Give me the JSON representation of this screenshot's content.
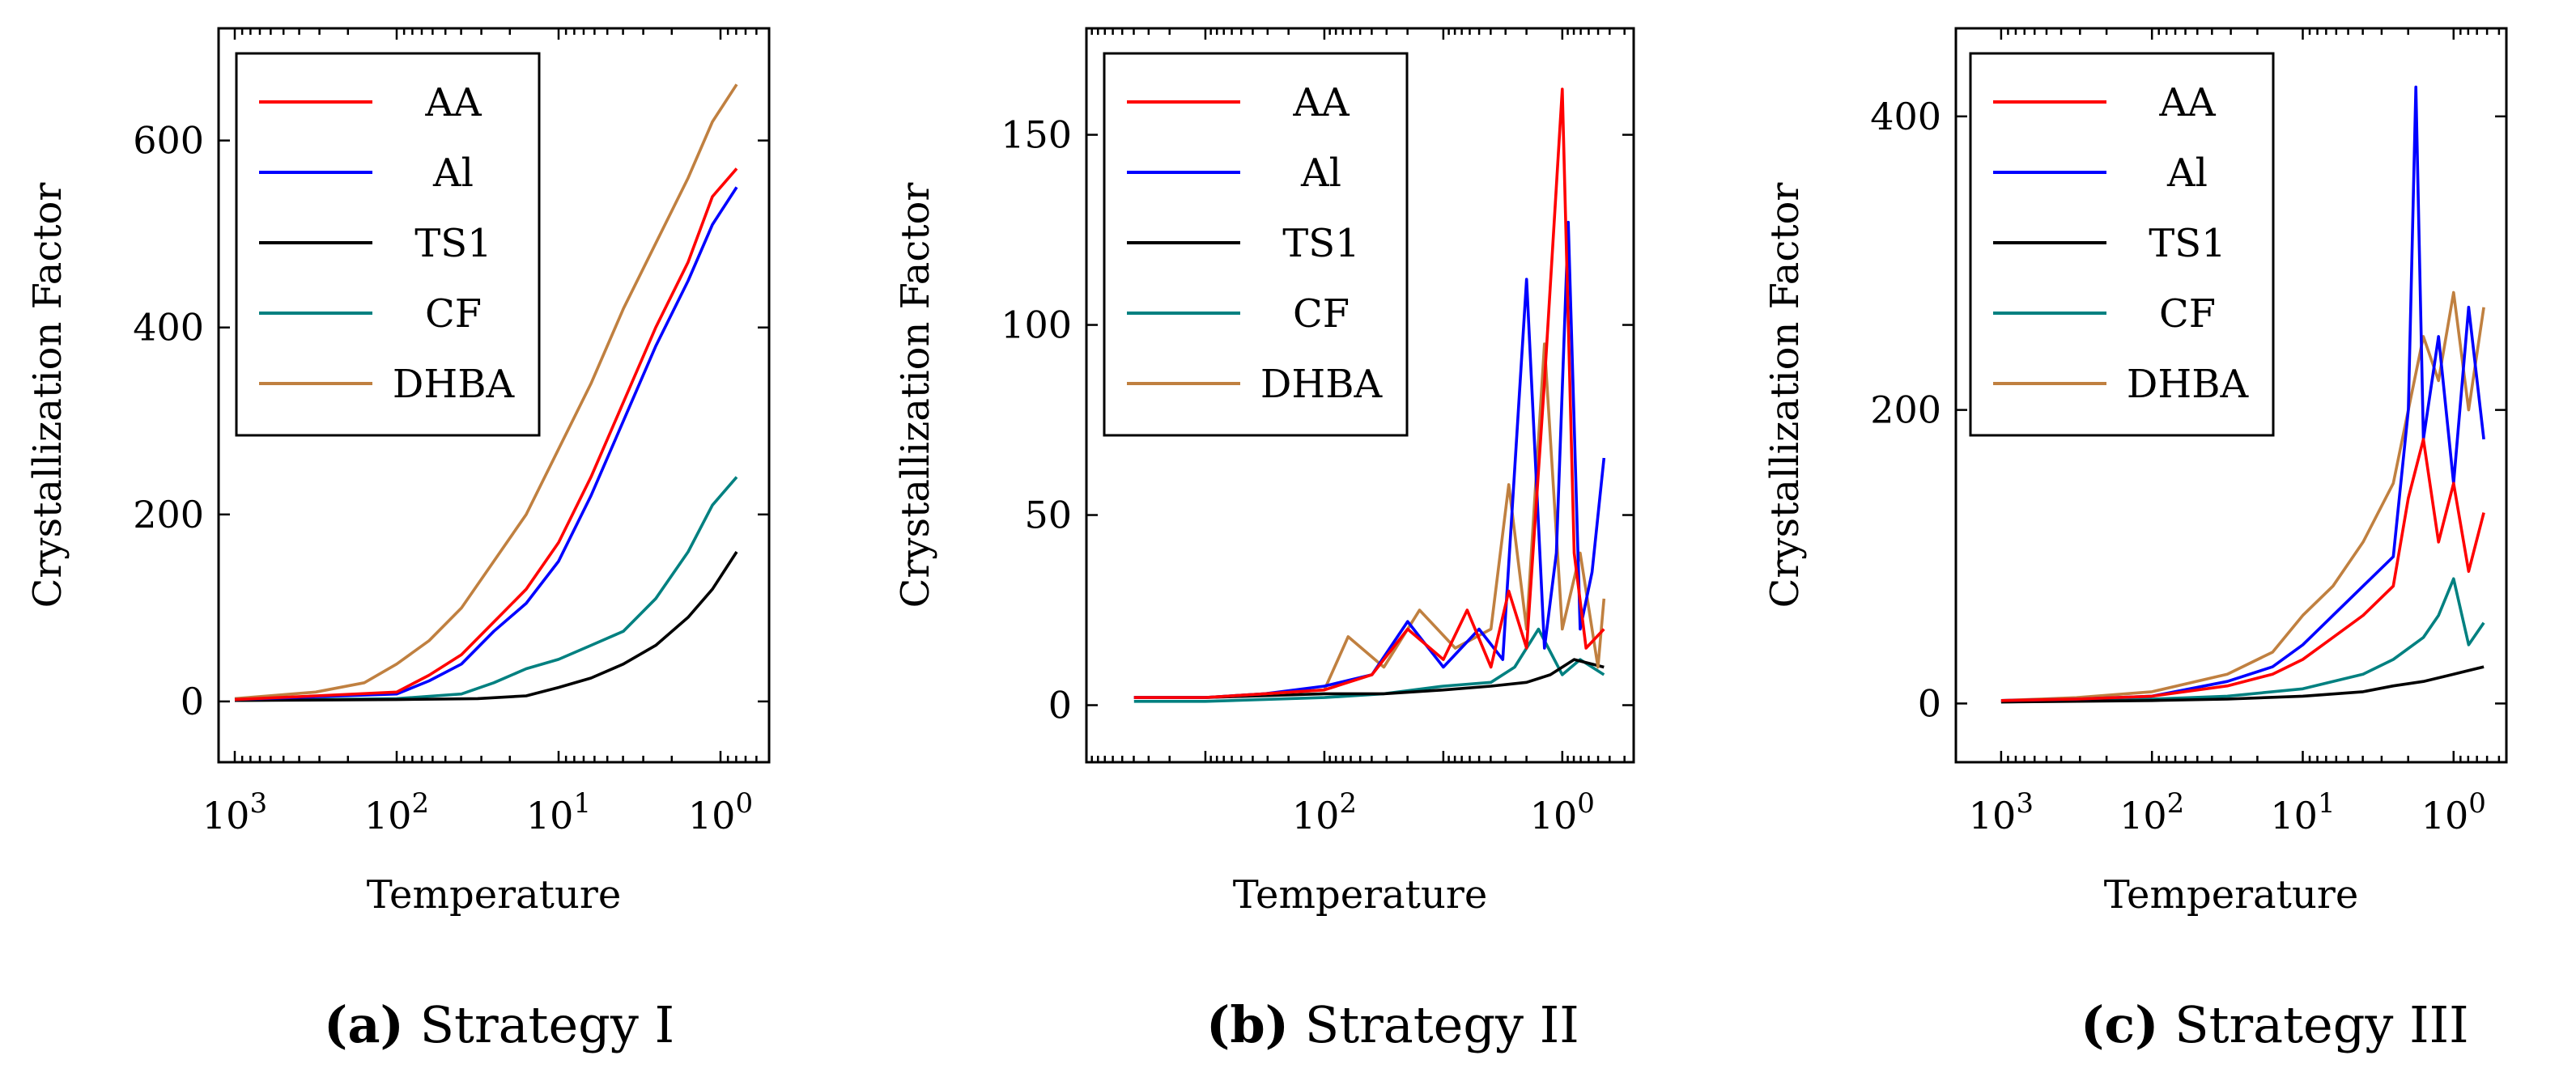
{
  "colors": {
    "AA": "#ff0000",
    "Al": "#0000ff",
    "TS1": "#000000",
    "CF": "#008080",
    "DHBA": "#c08040"
  },
  "chart_data": [
    {
      "type": "line",
      "caption_letter": "(a)",
      "caption_text": "Strategy I",
      "xlabel": "Temperature",
      "ylabel": "Crystallization Factor",
      "xscale": "log-reversed",
      "xlim_exp": [
        3.1,
        -0.3
      ],
      "ylim": [
        -65,
        720
      ],
      "yticks": [
        0,
        200,
        400,
        600
      ],
      "xticks": [
        {
          "exp": 3,
          "label": "10",
          "sup": "3"
        },
        {
          "exp": 2,
          "label": "10",
          "sup": "2"
        },
        {
          "exp": 1,
          "label": "10",
          "sup": "1"
        },
        {
          "exp": 0,
          "label": "10",
          "sup": "0"
        }
      ],
      "legend": [
        "AA",
        "Al",
        "TS1",
        "CF",
        "DHBA"
      ],
      "series": [
        {
          "name": "AA",
          "exp": [
            3.0,
            2.5,
            2.0,
            1.8,
            1.6,
            1.4,
            1.2,
            1.0,
            0.8,
            0.6,
            0.4,
            0.2,
            0.05,
            -0.1
          ],
          "values": [
            2,
            6,
            10,
            28,
            50,
            85,
            120,
            170,
            240,
            320,
            400,
            470,
            540,
            570
          ]
        },
        {
          "name": "Al",
          "exp": [
            3.0,
            2.5,
            2.0,
            1.8,
            1.6,
            1.4,
            1.2,
            1.0,
            0.8,
            0.6,
            0.4,
            0.2,
            0.05,
            -0.1
          ],
          "values": [
            2,
            5,
            8,
            22,
            40,
            75,
            105,
            150,
            220,
            300,
            380,
            450,
            510,
            550
          ]
        },
        {
          "name": "TS1",
          "exp": [
            3.0,
            2.0,
            1.5,
            1.2,
            1.0,
            0.8,
            0.6,
            0.4,
            0.2,
            0.05,
            -0.1
          ],
          "values": [
            1,
            2,
            3,
            6,
            15,
            25,
            40,
            60,
            90,
            120,
            160
          ]
        },
        {
          "name": "CF",
          "exp": [
            3.0,
            2.0,
            1.6,
            1.4,
            1.2,
            1.0,
            0.8,
            0.6,
            0.4,
            0.2,
            0.05,
            -0.1
          ],
          "values": [
            1,
            3,
            8,
            20,
            35,
            45,
            60,
            75,
            110,
            160,
            210,
            240
          ]
        },
        {
          "name": "DHBA",
          "exp": [
            3.0,
            2.5,
            2.2,
            2.0,
            1.8,
            1.6,
            1.4,
            1.2,
            1.0,
            0.8,
            0.6,
            0.4,
            0.2,
            0.05,
            -0.1
          ],
          "values": [
            3,
            10,
            20,
            40,
            65,
            100,
            150,
            200,
            270,
            340,
            420,
            490,
            560,
            620,
            660
          ]
        }
      ]
    },
    {
      "type": "line",
      "caption_letter": "(b)",
      "caption_text": "Strategy II",
      "xlabel": "Temperature",
      "ylabel": "Crystallization Factor",
      "xscale": "log-reversed",
      "xlim_exp": [
        4.0,
        -0.6
      ],
      "ylim": [
        -15,
        178
      ],
      "yticks": [
        0,
        50,
        100,
        150
      ],
      "xticks": [
        {
          "exp": 2,
          "label": "10",
          "sup": "2"
        },
        {
          "exp": 0,
          "label": "10",
          "sup": "0"
        }
      ],
      "legend": [
        "AA",
        "Al",
        "TS1",
        "CF",
        "DHBA"
      ],
      "series": [
        {
          "name": "AA",
          "exp": [
            3.6,
            3.0,
            2.5,
            2.0,
            1.6,
            1.3,
            1.0,
            0.8,
            0.6,
            0.45,
            0.3,
            0.15,
            0.0,
            -0.1,
            -0.2,
            -0.35
          ],
          "values": [
            2,
            2,
            3,
            4,
            8,
            20,
            12,
            25,
            10,
            30,
            15,
            85,
            162,
            40,
            15,
            20
          ]
        },
        {
          "name": "Al",
          "exp": [
            3.6,
            3.0,
            2.5,
            2.0,
            1.6,
            1.3,
            1.0,
            0.7,
            0.5,
            0.3,
            0.15,
            0.05,
            -0.05,
            -0.15,
            -0.25,
            -0.35
          ],
          "values": [
            2,
            2,
            3,
            5,
            8,
            22,
            10,
            20,
            12,
            112,
            15,
            40,
            127,
            20,
            35,
            65
          ]
        },
        {
          "name": "TS1",
          "exp": [
            3.6,
            3.0,
            2.0,
            1.5,
            1.0,
            0.6,
            0.3,
            0.1,
            -0.1,
            -0.35
          ],
          "values": [
            2,
            2,
            3,
            3,
            4,
            5,
            6,
            8,
            12,
            10
          ]
        },
        {
          "name": "CF",
          "exp": [
            3.6,
            3.0,
            2.0,
            1.5,
            1.0,
            0.6,
            0.4,
            0.2,
            0.0,
            -0.15,
            -0.35
          ],
          "values": [
            1,
            1,
            2,
            3,
            5,
            6,
            10,
            20,
            8,
            12,
            8
          ]
        },
        {
          "name": "DHBA",
          "exp": [
            3.6,
            3.0,
            2.5,
            2.0,
            1.8,
            1.5,
            1.2,
            0.9,
            0.6,
            0.45,
            0.3,
            0.15,
            0.0,
            -0.15,
            -0.3,
            -0.35
          ],
          "values": [
            2,
            2,
            3,
            4,
            18,
            10,
            25,
            15,
            20,
            58,
            20,
            95,
            20,
            40,
            10,
            28
          ]
        }
      ]
    },
    {
      "type": "line",
      "caption_letter": "(c)",
      "caption_text": "Strategy III",
      "xlabel": "Temperature",
      "ylabel": "Crystallization Factor",
      "xscale": "log-reversed",
      "xlim_exp": [
        3.3,
        -0.35
      ],
      "ylim": [
        -40,
        460
      ],
      "yticks": [
        0,
        200,
        400
      ],
      "xticks": [
        {
          "exp": 3,
          "label": "10",
          "sup": "3"
        },
        {
          "exp": 2,
          "label": "10",
          "sup": "2"
        },
        {
          "exp": 1,
          "label": "10",
          "sup": "1"
        },
        {
          "exp": 0,
          "label": "10",
          "sup": "0"
        }
      ],
      "legend": [
        "AA",
        "Al",
        "TS1",
        "CF",
        "DHBA"
      ],
      "series": [
        {
          "name": "AA",
          "exp": [
            3.0,
            2.5,
            2.0,
            1.5,
            1.2,
            1.0,
            0.8,
            0.6,
            0.4,
            0.3,
            0.2,
            0.1,
            0.0,
            -0.1,
            -0.2
          ],
          "values": [
            2,
            3,
            5,
            12,
            20,
            30,
            45,
            60,
            80,
            140,
            180,
            110,
            150,
            90,
            130
          ]
        },
        {
          "name": "Al",
          "exp": [
            3.0,
            2.5,
            2.0,
            1.5,
            1.2,
            1.0,
            0.8,
            0.6,
            0.4,
            0.3,
            0.25,
            0.2,
            0.1,
            0.0,
            -0.1,
            -0.2
          ],
          "values": [
            2,
            3,
            5,
            15,
            25,
            40,
            60,
            80,
            100,
            200,
            420,
            180,
            250,
            150,
            270,
            180
          ]
        },
        {
          "name": "TS1",
          "exp": [
            3.0,
            2.0,
            1.5,
            1.0,
            0.6,
            0.4,
            0.2,
            0.0,
            -0.2
          ],
          "values": [
            1,
            2,
            3,
            5,
            8,
            12,
            15,
            20,
            25
          ]
        },
        {
          "name": "CF",
          "exp": [
            3.0,
            2.0,
            1.5,
            1.0,
            0.6,
            0.4,
            0.2,
            0.1,
            0.0,
            -0.1,
            -0.2
          ],
          "values": [
            1,
            3,
            5,
            10,
            20,
            30,
            45,
            60,
            85,
            40,
            55
          ]
        },
        {
          "name": "DHBA",
          "exp": [
            3.0,
            2.5,
            2.0,
            1.5,
            1.2,
            1.0,
            0.8,
            0.6,
            0.4,
            0.3,
            0.2,
            0.1,
            0.0,
            -0.1,
            -0.2
          ],
          "values": [
            2,
            4,
            8,
            20,
            35,
            60,
            80,
            110,
            150,
            200,
            250,
            220,
            280,
            200,
            270
          ]
        }
      ]
    }
  ]
}
